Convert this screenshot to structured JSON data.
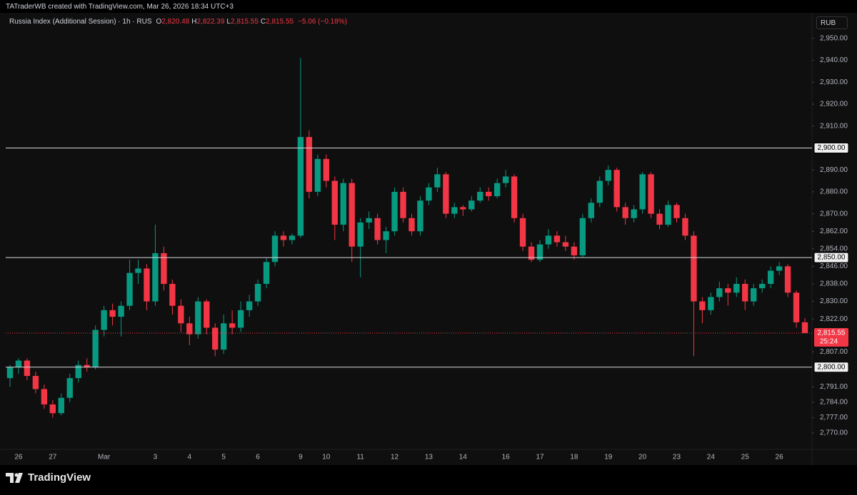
{
  "header": {
    "attribution": "TATraderWB created with TradingView.com, Mar 26, 2026 18:34 UTC+3"
  },
  "legend": {
    "symbol": "Russia Index (Additional Session) · 1h · RUS",
    "ohlc": [
      {
        "label": "O",
        "value": "2,820.48"
      },
      {
        "label": "H",
        "value": "2,822.39"
      },
      {
        "label": "L",
        "value": "2,815.55"
      },
      {
        "label": "C",
        "value": "2,815.55"
      }
    ],
    "change": "−5.06 (−0.18%)"
  },
  "currency": "RUB",
  "brand": "TradingView",
  "chart_data": {
    "type": "candlestick",
    "up_color": "#089981",
    "down_color": "#f23645",
    "grid": false,
    "categories": [
      null,
      "26",
      null,
      null,
      null,
      "27",
      null,
      null,
      null,
      null,
      null,
      "Mar",
      null,
      null,
      null,
      null,
      null,
      "3",
      null,
      null,
      null,
      "4",
      null,
      null,
      null,
      "5",
      null,
      null,
      null,
      "6",
      null,
      null,
      null,
      null,
      "9",
      null,
      null,
      "10",
      null,
      null,
      null,
      "11",
      null,
      null,
      null,
      "12",
      null,
      null,
      null,
      "13",
      null,
      null,
      null,
      "14",
      null,
      null,
      null,
      null,
      "16",
      null,
      null,
      null,
      "17",
      null,
      null,
      null,
      "18",
      null,
      null,
      null,
      "19",
      null,
      null,
      null,
      "20",
      null,
      null,
      null,
      "23",
      null,
      null,
      null,
      "24",
      null,
      null,
      null,
      "25",
      null,
      null,
      null,
      "26",
      null,
      null,
      null
    ],
    "open": [
      2795,
      2800,
      2803,
      2796,
      2790,
      2783,
      2779,
      2786,
      2795,
      2801,
      2800,
      2817,
      2826,
      2823,
      2828,
      2843,
      2845,
      2830,
      2852,
      2838,
      2828,
      2820,
      2815,
      2830,
      2818,
      2808,
      2820,
      2818,
      2826,
      2830,
      2838,
      2848,
      2860,
      2858,
      2860,
      2905,
      2880,
      2895,
      2885,
      2865,
      2884,
      2855,
      2866,
      2868,
      2858,
      2862,
      2880,
      2868,
      2862,
      2876,
      2882,
      2888,
      2870,
      2873,
      2872,
      2876,
      2880,
      2878,
      2884,
      2887,
      2868,
      2855,
      2849,
      2856,
      2860,
      2857,
      2855,
      2851,
      2868,
      2875,
      2885,
      2890,
      2873,
      2868,
      2872,
      2888,
      2870,
      2865,
      2874,
      2868,
      2860,
      2830,
      2826,
      2832,
      2836,
      2834,
      2838,
      2830,
      2836,
      2838,
      2844,
      2846,
      2834,
      2820.48
    ],
    "high": [
      2801,
      2804,
      2804,
      2798,
      2792,
      2785,
      2788,
      2797,
      2803,
      2804,
      2819,
      2828,
      2829,
      2830,
      2849,
      2849,
      2847,
      2865,
      2855,
      2840,
      2831,
      2823,
      2832,
      2831,
      2820,
      2824,
      2826,
      2830,
      2833,
      2840,
      2850,
      2862,
      2862,
      2861,
      2941,
      2908,
      2897,
      2897,
      2887,
      2886,
      2886,
      2868,
      2871,
      2870,
      2864,
      2882,
      2882,
      2870,
      2878,
      2884,
      2891,
      2889,
      2875,
      2874,
      2878,
      2882,
      2882,
      2886,
      2890,
      2888,
      2870,
      2857,
      2858,
      2863,
      2862,
      2860,
      2857,
      2870,
      2877,
      2887,
      2892,
      2891,
      2875,
      2874,
      2889,
      2889,
      2872,
      2876,
      2875,
      2870,
      2862,
      2832,
      2834,
      2839,
      2838,
      2841,
      2840,
      2838,
      2840,
      2846,
      2848,
      2847,
      2835,
      2822.39
    ],
    "low": [
      2791,
      2797,
      2794,
      2788,
      2781,
      2777,
      2778,
      2784,
      2793,
      2798,
      2799,
      2814,
      2819,
      2814,
      2826,
      2838,
      2826,
      2828,
      2835,
      2824,
      2816,
      2810,
      2813,
      2815,
      2805,
      2806,
      2815,
      2816,
      2823,
      2828,
      2836,
      2846,
      2855,
      2856,
      2859,
      2877,
      2878,
      2882,
      2858,
      2862,
      2848,
      2841,
      2863,
      2856,
      2852,
      2860,
      2866,
      2860,
      2860,
      2874,
      2880,
      2868,
      2868,
      2869,
      2871,
      2875,
      2876,
      2877,
      2882,
      2866,
      2853,
      2848,
      2848,
      2854,
      2855,
      2853,
      2849,
      2850,
      2866,
      2873,
      2883,
      2871,
      2865,
      2866,
      2870,
      2868,
      2863,
      2864,
      2866,
      2858,
      2805,
      2820,
      2824,
      2830,
      2828,
      2832,
      2826,
      2828,
      2834,
      2836,
      2842,
      2832,
      2818,
      2815.55
    ],
    "close": [
      2800,
      2803,
      2796,
      2790,
      2783,
      2779,
      2786,
      2795,
      2801,
      2800,
      2817,
      2826,
      2823,
      2828,
      2843,
      2845,
      2830,
      2852,
      2838,
      2828,
      2820,
      2815,
      2830,
      2818,
      2808,
      2820,
      2818,
      2826,
      2830,
      2838,
      2848,
      2860,
      2858,
      2860,
      2905,
      2880,
      2895,
      2885,
      2865,
      2884,
      2855,
      2866,
      2868,
      2858,
      2862,
      2880,
      2868,
      2862,
      2876,
      2882,
      2888,
      2870,
      2873,
      2872,
      2876,
      2880,
      2878,
      2884,
      2887,
      2868,
      2855,
      2849,
      2856,
      2860,
      2857,
      2855,
      2851,
      2868,
      2875,
      2885,
      2890,
      2873,
      2868,
      2872,
      2888,
      2870,
      2865,
      2874,
      2868,
      2860,
      2830,
      2826,
      2832,
      2836,
      2834,
      2838,
      2830,
      2836,
      2838,
      2844,
      2846,
      2834,
      2820.48,
      2815.55
    ],
    "ylim": [
      2762.5,
      2961
    ],
    "yticks": [
      {
        "value": 2950,
        "label": "2,950.00"
      },
      {
        "value": 2940,
        "label": "2,940.00"
      },
      {
        "value": 2930,
        "label": "2,930.00"
      },
      {
        "value": 2920,
        "label": "2,920.00"
      },
      {
        "value": 2910,
        "label": "2,910.00"
      },
      {
        "value": 2890,
        "label": "2,890.00"
      },
      {
        "value": 2880,
        "label": "2,880.00"
      },
      {
        "value": 2870,
        "label": "2,870.00"
      },
      {
        "value": 2862,
        "label": "2,862.00"
      },
      {
        "value": 2854,
        "label": "2,854.00"
      },
      {
        "value": 2846,
        "label": "2,846.00"
      },
      {
        "value": 2838,
        "label": "2,838.00"
      },
      {
        "value": 2830,
        "label": "2,830.00"
      },
      {
        "value": 2822,
        "label": "2,822.00"
      },
      {
        "value": 2807,
        "label": "2,807.00"
      },
      {
        "value": 2791,
        "label": "2,791.00"
      },
      {
        "value": 2784,
        "label": "2,784.00"
      },
      {
        "value": 2777,
        "label": "2,777.00"
      },
      {
        "value": 2770,
        "label": "2,770.00"
      }
    ],
    "levels": [
      {
        "value": 2900,
        "label": "2,900.00"
      },
      {
        "value": 2850,
        "label": "2,850.00"
      },
      {
        "value": 2800,
        "label": "2,800.00"
      }
    ],
    "last_price": {
      "value": 2815.55,
      "label": "2,815.55",
      "countdown": "25:24"
    }
  }
}
